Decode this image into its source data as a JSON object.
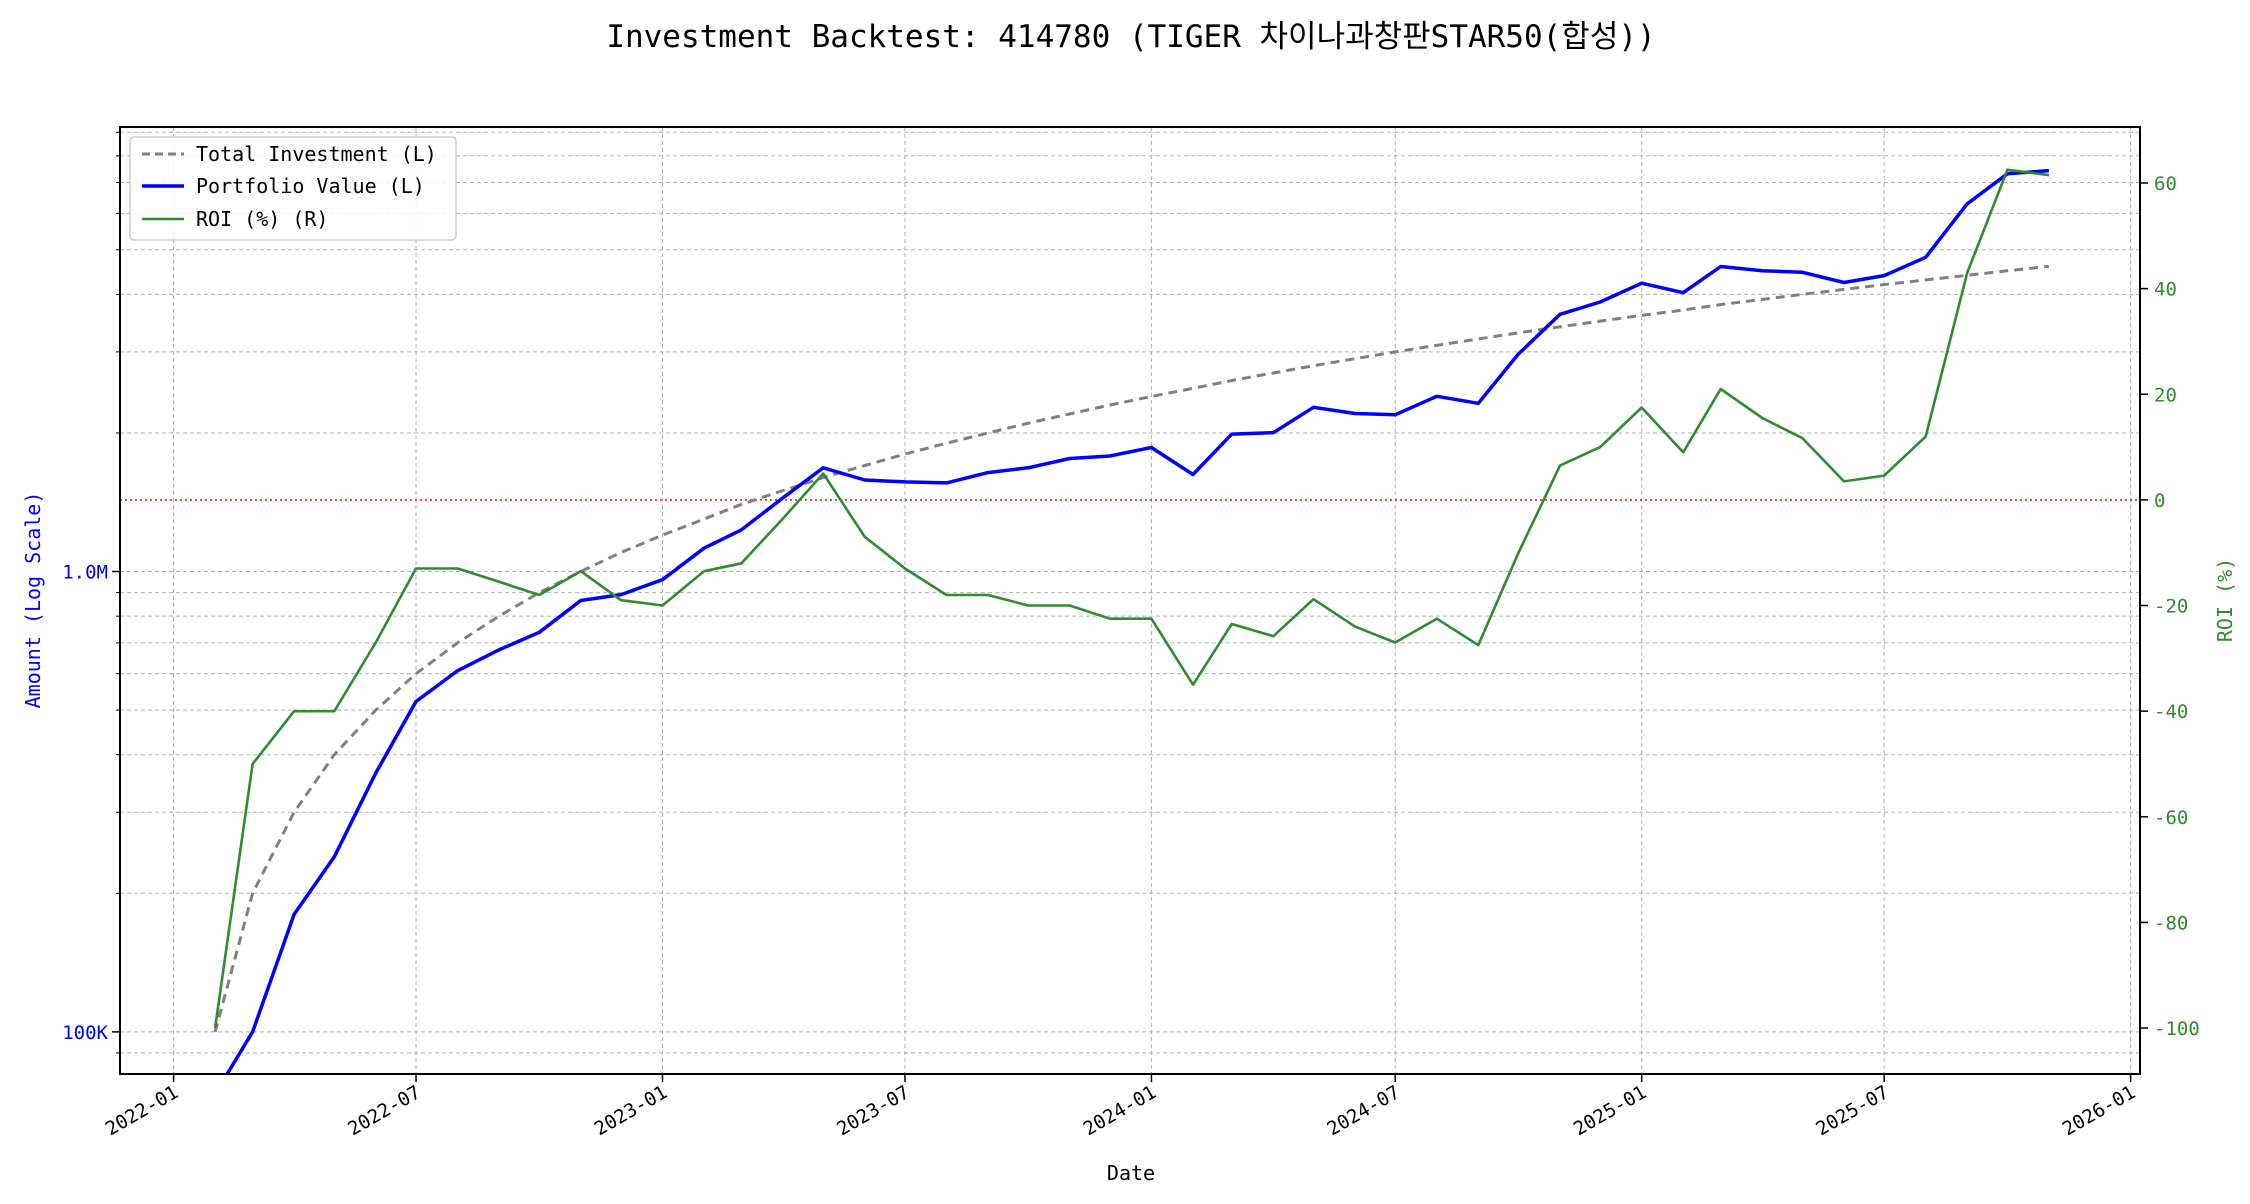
{
  "chart_data": {
    "type": "line",
    "title": "Investment Backtest: 414780 (TIGER 차이나과창판STAR50(합성))",
    "xlabel": "Date",
    "ylabel_left": "Amount (Log Scale)",
    "ylabel_right": "ROI (%)",
    "left_scale": "log",
    "ylim_left": [
      81000,
      9240000
    ],
    "ylim_right": [
      -108.7,
      70.6
    ],
    "xlim": [
      "2021-11-22",
      "2026-01-08"
    ],
    "grid": true,
    "legend_placement": "top-left",
    "x_ticks": [
      "2022-01",
      "2022-07",
      "2023-01",
      "2023-07",
      "2024-01",
      "2024-07",
      "2025-01",
      "2025-07",
      "2026-01"
    ],
    "y_ticks_left": [
      {
        "value": 100000,
        "label": "100K"
      },
      {
        "value": 1000000,
        "label": "1.0M"
      }
    ],
    "y_ticks_right": [
      -100,
      -80,
      -60,
      -40,
      -20,
      0,
      20,
      40,
      60
    ],
    "reference_line": {
      "axis": "right",
      "value": 0,
      "color": "#ff0000",
      "style": "dotted"
    },
    "x": [
      "2022-02",
      "2022-03",
      "2022-04",
      "2022-05",
      "2022-06",
      "2022-07",
      "2022-08",
      "2022-09",
      "2022-10",
      "2022-11",
      "2022-12",
      "2023-01",
      "2023-02",
      "2023-03",
      "2023-04",
      "2023-05",
      "2023-06",
      "2023-07",
      "2023-08",
      "2023-09",
      "2023-10",
      "2023-11",
      "2023-12",
      "2024-01",
      "2024-02",
      "2024-03",
      "2024-04",
      "2024-05",
      "2024-06",
      "2024-07",
      "2024-08",
      "2024-09",
      "2024-10",
      "2024-11",
      "2024-12",
      "2025-01",
      "2025-02",
      "2025-03",
      "2025-04",
      "2025-05",
      "2025-06",
      "2025-07",
      "2025-08",
      "2025-09",
      "2025-10",
      "2025-11"
    ],
    "series": [
      {
        "name": "Total Investment (L)",
        "axis": "left",
        "color": "#808080",
        "style": "dashed",
        "values": [
          100000,
          200000,
          300000,
          400000,
          500000,
          600000,
          700000,
          800000,
          900000,
          1000000,
          1100000,
          1200000,
          1300000,
          1400000,
          1500000,
          1600000,
          1700000,
          1800000,
          1900000,
          2000000,
          2100000,
          2200000,
          2300000,
          2400000,
          2500000,
          2600000,
          2700000,
          2800000,
          2900000,
          3000000,
          3100000,
          3200000,
          3300000,
          3400000,
          3500000,
          3600000,
          3700000,
          3800000,
          3900000,
          4000000,
          4100000,
          4200000,
          4300000,
          4400000,
          4500000,
          4600000
        ]
      },
      {
        "name": "Portfolio Value (L)",
        "axis": "left",
        "color": "#0000ff",
        "style": "solid",
        "values": [
          0,
          100000,
          180000,
          240000,
          365000,
          522000,
          609000,
          676000,
          738000,
          865000,
          891000,
          960000,
          1124000,
          1232000,
          1447000,
          1680000,
          1581000,
          1566000,
          1558000,
          1640000,
          1680000,
          1760000,
          1782000,
          1860000,
          1625000,
          1989000,
          2003000,
          2274000,
          2204000,
          2190000,
          2402000,
          2320000,
          2970000,
          3621000,
          3850000,
          4230000,
          4033000,
          4598000,
          4504000,
          4468000,
          4244000,
          4393000,
          4816000,
          6292000,
          7313000,
          7429000
        ]
      },
      {
        "name": "ROI (%) (R)",
        "axis": "right",
        "color": "#2e8b2e",
        "style": "solid",
        "values": [
          -100,
          -50,
          -40,
          -40,
          -27,
          -13,
          -13,
          -15.5,
          -18,
          -13.5,
          -19,
          -20,
          -13.5,
          -12,
          -3.5,
          5,
          -7,
          -13,
          -18,
          -18,
          -20,
          -20,
          -22.5,
          -22.5,
          -35,
          -23.5,
          -25.8,
          -18.8,
          -24,
          -27,
          -22.5,
          -27.5,
          -10,
          6.5,
          10,
          17.5,
          9,
          21,
          15.5,
          11.7,
          3.5,
          4.6,
          12,
          43,
          62.5,
          61.5
        ]
      }
    ]
  }
}
